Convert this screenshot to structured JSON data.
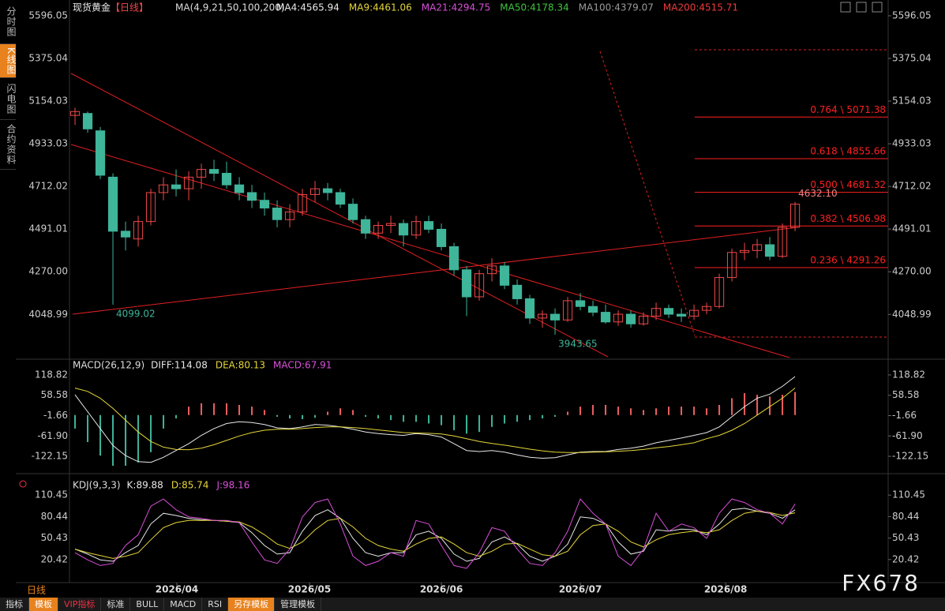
{
  "header": {
    "symbol": "现货黄金",
    "period": "【日线】",
    "ma_spec": "MA(4,9,21,50,100,200)",
    "period_tab": "日线",
    "watermark": "FX678",
    "side_tabs": [
      "分时图",
      "K线图",
      "闪电图",
      "合约资料"
    ],
    "tool_tabs": [
      "指标",
      "模板",
      "VIP指标",
      "标准",
      "BULL",
      "MACD",
      "RSI",
      "另存模板",
      "管理模板"
    ],
    "ma_legend": [
      {
        "text": "MA4:4565.94",
        "color": "#e8e8e8"
      },
      {
        "text": "MA9:4461.06",
        "color": "#e6d63a"
      },
      {
        "text": "MA21:4294.75",
        "color": "#d94fd9"
      },
      {
        "text": "MA50:4178.34",
        "color": "#3ec43e"
      },
      {
        "text": "MA100:4379.07",
        "color": "#9a9a9a"
      },
      {
        "text": "MA200:4515.71",
        "color": "#f03a3a"
      }
    ]
  },
  "chart_data": [
    {
      "type": "candlestick",
      "up_color": "#f04848",
      "down_color": "#3fb59a",
      "xlim": [
        -0.44,
        64.37
      ],
      "ylim": [
        3817,
        5645
      ],
      "yticks": [
        5596.05,
        5375.04,
        5154.03,
        4933.03,
        4712.02,
        4491.01,
        {
          "value": 4270,
          "label": "4270.00"
        },
        4048.99
      ],
      "open": [
        5080,
        5090,
        5000,
        4760,
        4480,
        4440,
        4530,
        4680,
        4720,
        4700,
        4760,
        4800,
        4780,
        4720,
        4680,
        4640,
        4600,
        4540,
        4580,
        4670,
        4700,
        4680,
        4620,
        4540,
        4470,
        4510,
        4520,
        4460,
        4530,
        4490,
        4400,
        4280,
        4140,
        4260,
        4300,
        4200,
        4130,
        4030,
        4050,
        4020,
        4120,
        4090,
        4060,
        4010,
        4050,
        4000,
        4040,
        4080,
        4050,
        4040,
        4070,
        4090,
        4240,
        4370,
        4380,
        4410,
        4350,
        4500
      ],
      "high": [
        5120,
        5100,
        5020,
        4780,
        4530,
        4560,
        4700,
        4760,
        4800,
        4790,
        4830,
        4850,
        4840,
        4760,
        4720,
        4680,
        4640,
        4620,
        4700,
        4740,
        4730,
        4700,
        4650,
        4560,
        4530,
        4560,
        4540,
        4560,
        4560,
        4520,
        4420,
        4300,
        4280,
        4340,
        4320,
        4230,
        4150,
        4070,
        4080,
        4140,
        4160,
        4120,
        4100,
        4070,
        4070,
        4060,
        4110,
        4100,
        4080,
        4100,
        4110,
        4260,
        4390,
        4420,
        4440,
        4450,
        4520,
        4632.1
      ],
      "low": [
        5030,
        4990,
        4750,
        4099.02,
        4380,
        4400,
        4510,
        4640,
        4660,
        4640,
        4700,
        4740,
        4700,
        4640,
        4600,
        4560,
        4500,
        4500,
        4560,
        4630,
        4640,
        4600,
        4520,
        4440,
        4440,
        4470,
        4400,
        4440,
        4470,
        4380,
        4250,
        4040,
        4120,
        4220,
        4180,
        4100,
        4000,
        3980,
        3943.65,
        4010,
        4070,
        4040,
        4000,
        3990,
        3980,
        3990,
        4020,
        4030,
        4010,
        4020,
        4050,
        4080,
        4220,
        4330,
        4340,
        4330,
        4340,
        4480
      ],
      "close": [
        5100,
        5010,
        4770,
        4480,
        4450,
        4530,
        4680,
        4720,
        4700,
        4760,
        4800,
        4780,
        4720,
        4680,
        4640,
        4600,
        4540,
        4580,
        4670,
        4700,
        4680,
        4620,
        4540,
        4470,
        4510,
        4520,
        4460,
        4530,
        4490,
        4400,
        4280,
        4140,
        4260,
        4300,
        4200,
        4130,
        4030,
        4050,
        4020,
        4120,
        4090,
        4060,
        4010,
        4050,
        4000,
        4040,
        4080,
        4050,
        4040,
        4070,
        4090,
        4240,
        4370,
        4380,
        4410,
        4350,
        4500,
        4620
      ],
      "annotations": [
        {
          "x": 3,
          "value": 4099.02,
          "label": "4099.02",
          "color": "#3fb59a"
        },
        {
          "x": 38,
          "value": 3943.65,
          "label": "3943.65",
          "color": "#3fb59a"
        },
        {
          "x": 57,
          "value": 4632.1,
          "label": "4632.10",
          "color": "#f08080"
        }
      ],
      "fib_color": "#ff2020",
      "fib_levels": [
        {
          "value": 5071.38,
          "label": "0.764 \\ 5071.38"
        },
        {
          "value": 4855.66,
          "label": "0.618 \\ 4855.66"
        },
        {
          "value": 4681.32,
          "label": "0.500 \\ 4681.32"
        },
        {
          "value": 4506.98,
          "label": "0.382 \\ 4506.98"
        },
        {
          "value": 4291.26,
          "label": "0.236 \\ 4291.26"
        }
      ]
    },
    {
      "type": "macd",
      "title": "MACD(26,12,9)",
      "legend": [
        {
          "text": "DIFF:114.08",
          "color": "#e8e8e8"
        },
        {
          "text": "DEA:80.13",
          "color": "#e6d63a"
        },
        {
          "text": "MACD:67.91",
          "color": "#d94fd9"
        }
      ],
      "xlim": [
        -0.44,
        64.37
      ],
      "ylim": [
        -173.5,
        165.5
      ],
      "yticks": [
        118.82,
        58.58,
        -1.66,
        {
          "value": -61.9,
          "label": "-61.90"
        },
        -122.15
      ],
      "series": [
        {
          "name": "DIFF",
          "color": "#e8e8e8",
          "values": [
            60,
            10,
            -40,
            -90,
            -120,
            -138,
            -140,
            -125,
            -105,
            -85,
            -60,
            -40,
            -25,
            -20,
            -22,
            -28,
            -38,
            -40,
            -35,
            -28,
            -30,
            -35,
            -42,
            -50,
            -55,
            -58,
            -60,
            -55,
            -58,
            -65,
            -85,
            -105,
            -108,
            -105,
            -110,
            -118,
            -125,
            -128,
            -126,
            -118,
            -110,
            -108,
            -108,
            -102,
            -98,
            -92,
            -82,
            -75,
            -68,
            -60,
            -52,
            -35,
            -5,
            25,
            50,
            62,
            85,
            114.08
          ]
        },
        {
          "name": "DEA",
          "color": "#e6d63a",
          "values": [
            80,
            70,
            50,
            20,
            -15,
            -50,
            -78,
            -95,
            -102,
            -103,
            -98,
            -88,
            -75,
            -62,
            -52,
            -45,
            -42,
            -42,
            -40,
            -37,
            -35,
            -35,
            -37,
            -40,
            -44,
            -48,
            -52,
            -53,
            -54,
            -56,
            -62,
            -70,
            -78,
            -84,
            -89,
            -95,
            -101,
            -106,
            -110,
            -111,
            -111,
            -110,
            -109,
            -107,
            -105,
            -102,
            -97,
            -93,
            -88,
            -82,
            -70,
            -60,
            -45,
            -25,
            0,
            25,
            50,
            80.13
          ]
        }
      ],
      "histogram": {
        "up_color": "#f06060",
        "down_color": "#3fb59a",
        "values": [
          -40,
          -80,
          -120,
          -150,
          -150,
          -140,
          -110,
          -40,
          -10,
          25,
          35,
          35,
          35,
          30,
          25,
          15,
          -5,
          -10,
          -12,
          -8,
          10,
          20,
          15,
          -5,
          -10,
          -15,
          -20,
          -20,
          -25,
          -30,
          -45,
          -55,
          -50,
          -35,
          -25,
          -20,
          -15,
          -10,
          -5,
          10,
          25,
          30,
          30,
          25,
          20,
          15,
          20,
          25,
          25,
          25,
          20,
          30,
          50,
          65,
          60,
          55,
          60,
          67.91
        ]
      }
    },
    {
      "type": "kdj",
      "title": "KDJ(9,3,3)",
      "legend": [
        {
          "text": "K:89.88",
          "color": "#e8e8e8"
        },
        {
          "text": "D:85.74",
          "color": "#e6d63a"
        },
        {
          "text": "J:98.16",
          "color": "#d94fd9"
        }
      ],
      "xlim": [
        -0.44,
        64.37
      ],
      "ylim": [
        -11.8,
        132.7
      ],
      "yticks": [
        110.45,
        80.44,
        50.43,
        20.42
      ],
      "xticks": [
        {
          "value": 8.06,
          "label": "2026/04"
        },
        {
          "value": 18.56,
          "label": "2026/05"
        },
        {
          "value": 29,
          "label": "2026/06"
        },
        {
          "value": 40,
          "label": "2026/07"
        },
        {
          "value": 51.5,
          "label": "2026/08"
        }
      ],
      "series": [
        {
          "name": "K",
          "color": "#e8e8e8",
          "values": [
            35,
            28,
            20,
            18,
            30,
            40,
            70,
            85,
            82,
            78,
            76,
            75,
            74,
            72,
            58,
            40,
            28,
            30,
            60,
            82,
            90,
            78,
            50,
            30,
            25,
            30,
            30,
            55,
            60,
            50,
            28,
            18,
            22,
            45,
            52,
            42,
            25,
            18,
            25,
            42,
            80,
            78,
            70,
            45,
            28,
            32,
            62,
            60,
            63,
            62,
            55,
            70,
            90,
            92,
            88,
            85,
            78,
            89.88
          ]
        },
        {
          "name": "D",
          "color": "#e6d63a",
          "values": [
            35,
            30,
            26,
            22,
            25,
            30,
            48,
            65,
            72,
            75,
            75,
            75,
            74,
            73,
            66,
            55,
            42,
            36,
            45,
            62,
            75,
            78,
            66,
            50,
            40,
            35,
            32,
            42,
            50,
            52,
            42,
            30,
            25,
            32,
            42,
            43,
            35,
            27,
            25,
            32,
            55,
            68,
            70,
            60,
            45,
            38,
            48,
            55,
            58,
            60,
            58,
            62,
            75,
            85,
            88,
            86,
            82,
            85.74
          ]
        },
        {
          "name": "J",
          "color": "#d94fd9",
          "values": [
            30,
            20,
            12,
            15,
            40,
            55,
            95,
            105,
            90,
            80,
            78,
            75,
            75,
            72,
            45,
            20,
            15,
            35,
            80,
            100,
            105,
            70,
            25,
            12,
            18,
            30,
            25,
            75,
            70,
            40,
            12,
            8,
            30,
            65,
            60,
            35,
            15,
            12,
            30,
            60,
            105,
            85,
            70,
            25,
            12,
            35,
            85,
            60,
            70,
            65,
            50,
            85,
            105,
            100,
            90,
            85,
            70,
            98.16
          ]
        }
      ]
    }
  ]
}
